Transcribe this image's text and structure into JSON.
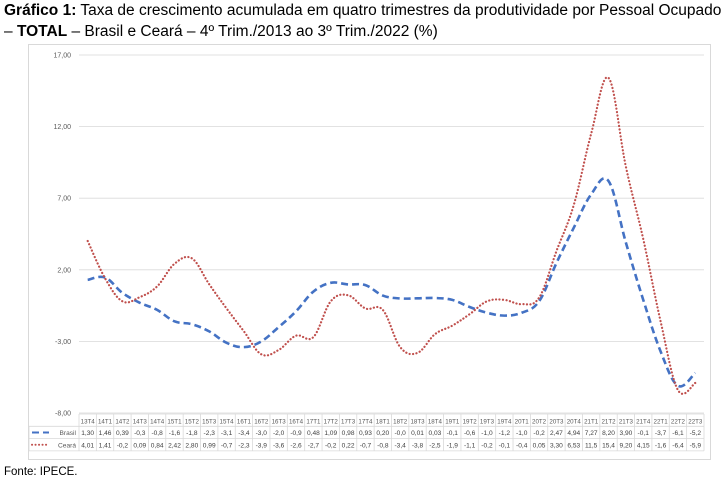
{
  "caption": {
    "label": "Gráfico 1:",
    "text_a": " Taxa de crescimento acumulada em quatro trimestres da produtividade por Pessoal Ocupado – ",
    "emph": "TOTAL",
    "text_b": " – Brasil e Ceará – 4º Trim./2013 ao 3º Trim./2022 (%)"
  },
  "source": "Fonte: IPECE.",
  "colors": {
    "brasil": "#4472c4",
    "ceara": "#c0504d",
    "grid": "#d9d9d9",
    "text": "#595959"
  },
  "chart_data": {
    "type": "line",
    "title": "",
    "xlabel": "",
    "ylabel": "",
    "ylim": [
      -8,
      17
    ],
    "yticks": [
      "17,00",
      "12,00",
      "7,00",
      "2,00",
      "-3,00",
      "-8,00"
    ],
    "ytick_values": [
      17,
      12,
      7,
      2,
      -3,
      -8
    ],
    "grid": true,
    "legend": "data-table-left",
    "categories": [
      "13T4",
      "14T1",
      "14T2",
      "14T3",
      "14T4",
      "15T1",
      "15T2",
      "15T3",
      "15T4",
      "16T1",
      "16T2",
      "16T3",
      "16T4",
      "17T1",
      "17T2",
      "17T3",
      "17T4",
      "18T1",
      "18T2",
      "18T3",
      "18T4",
      "19T1",
      "19T2",
      "19T3",
      "19T4",
      "20T1",
      "20T2",
      "20T3",
      "20T4",
      "21T1",
      "21T2",
      "21T3",
      "21T4",
      "22T1",
      "22T2",
      "22T3"
    ],
    "series": [
      {
        "name": "Brasil",
        "style": "dashed",
        "values": [
          1.3,
          1.46,
          0.39,
          -0.3,
          -0.8,
          -1.6,
          -1.8,
          -2.3,
          -3.1,
          -3.4,
          -3.0,
          -2.0,
          -0.9,
          0.48,
          1.09,
          0.98,
          0.93,
          0.2,
          -0.0,
          0.01,
          0.03,
          -0.1,
          -0.6,
          -1.0,
          -1.2,
          -1.0,
          -0.2,
          2.47,
          4.94,
          7.27,
          8.2,
          3.9,
          -0.1,
          -3.7,
          -6.1,
          -5.2
        ],
        "labels": [
          "1,30",
          "1,46",
          "0,39",
          "-0,3",
          "-0,8",
          "-1,6",
          "-1,8",
          "-2,3",
          "-3,1",
          "-3,4",
          "-3,0",
          "-2,0",
          "-0,9",
          "0,48",
          "1,09",
          "0,98",
          "0,93",
          "0,20",
          "-0,0",
          "0,01",
          "0,03",
          "-0,1",
          "-0,6",
          "-1,0",
          "-1,2",
          "-1,0",
          "-0,2",
          "2,47",
          "4,94",
          "7,27",
          "8,20",
          "3,90",
          "-0,1",
          "-3,7",
          "-6,1",
          "-5,2"
        ]
      },
      {
        "name": "Ceará",
        "style": "dotted",
        "values": [
          4.01,
          1.41,
          -0.2,
          0.09,
          0.84,
          2.42,
          2.8,
          0.99,
          -0.7,
          -2.3,
          -3.9,
          -3.6,
          -2.6,
          -2.7,
          -0.2,
          0.22,
          -0.7,
          -0.8,
          -3.4,
          -3.8,
          -2.5,
          -1.9,
          -1.1,
          -0.2,
          -0.1,
          -0.4,
          0.05,
          3.3,
          6.53,
          11.5,
          15.4,
          9.2,
          4.15,
          -1.6,
          -6.4,
          -5.9
        ],
        "labels": [
          "4,01",
          "1,41",
          "-0,2",
          "0,09",
          "0,84",
          "2,42",
          "2,80",
          "0,99",
          "-0,7",
          "-2,3",
          "-3,9",
          "-3,6",
          "-2,6",
          "-2,7",
          "-0,2",
          "0,22",
          "-0,7",
          "-0,8",
          "-3,4",
          "-3,8",
          "-2,5",
          "-1,9",
          "-1,1",
          "-0,2",
          "-0,1",
          "-0,4",
          "0,05",
          "3,30",
          "6,53",
          "11,5",
          "15,4",
          "9,20",
          "4,15",
          "-1,6",
          "-6,4",
          "-5,9"
        ]
      }
    ]
  }
}
